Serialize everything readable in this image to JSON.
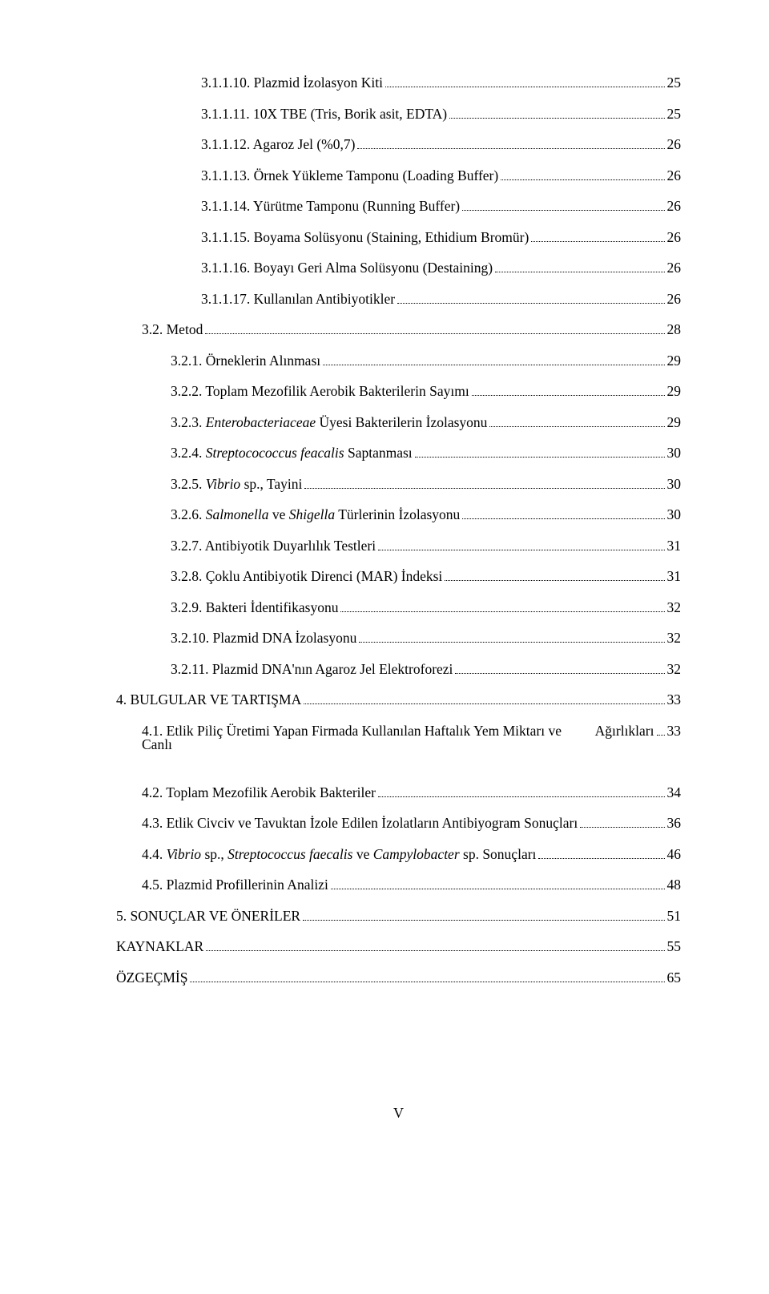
{
  "entries": [
    {
      "indent": 3,
      "label": "3.1.1.10. Plazmid İzolasyon Kiti",
      "page": "25"
    },
    {
      "indent": 3,
      "label": "3.1.1.11. 10X TBE (Tris, Borik asit, EDTA)",
      "page": "25"
    },
    {
      "indent": 3,
      "label": "3.1.1.12. Agaroz Jel (%0,7)",
      "page": "26"
    },
    {
      "indent": 3,
      "label": "3.1.1.13. Örnek Yükleme Tamponu (Loading Buffer)",
      "page": "26"
    },
    {
      "indent": 3,
      "label": "3.1.1.14. Yürütme Tamponu (Running Buffer)",
      "page": "26"
    },
    {
      "indent": 3,
      "label": "3.1.1.15. Boyama Solüsyonu (Staining, Ethidium Bromür)",
      "page": "26"
    },
    {
      "indent": 3,
      "label": "3.1.1.16. Boyayı Geri Alma Solüsyonu (Destaining)",
      "page": "26"
    },
    {
      "indent": 3,
      "label": "3.1.1.17. Kullanılan Antibiyotikler",
      "page": "26"
    },
    {
      "indent": 1,
      "label": "3.2. Metod",
      "page": "28"
    },
    {
      "indent": 2,
      "label": "3.2.1. Örneklerin Alınması",
      "page": "29"
    },
    {
      "indent": 2,
      "label": "3.2.2. Toplam Mezofilik Aerobik Bakterilerin Sayımı",
      "page": "29"
    },
    {
      "indent": 2,
      "html": "3.2.3. <span class=\"italic\">Enterobacteriaceae</span> Üyesi Bakterilerin İzolasyonu",
      "page": "29"
    },
    {
      "indent": 2,
      "html": "3.2.4. <span class=\"italic\">Streptocococcus feacalis</span> Saptanması",
      "page": "30"
    },
    {
      "indent": 2,
      "html": "3.2.5. <span class=\"italic\">Vibrio</span> sp., Tayini",
      "page": "30"
    },
    {
      "indent": 2,
      "html": "3.2.6. <span class=\"italic\">Salmonella</span> ve <span class=\"italic\">Shigella</span> Türlerinin İzolasyonu",
      "page": "30"
    },
    {
      "indent": 2,
      "label": "3.2.7. Antibiyotik Duyarlılık Testleri",
      "page": "31"
    },
    {
      "indent": 2,
      "label": "3.2.8. Çoklu Antibiyotik Direnci (MAR) İndeksi",
      "page": "31"
    },
    {
      "indent": 2,
      "label": "3.2.9. Bakteri İdentifikasyonu",
      "page": "32"
    },
    {
      "indent": 2,
      "label": "3.2.10. Plazmid DNA İzolasyonu",
      "page": "32"
    },
    {
      "indent": 2,
      "label": "3.2.11. Plazmid DNA'nın Agaroz Jel Elektroforezi",
      "page": "32"
    },
    {
      "indent": 0,
      "label": "4. BULGULAR VE TARTIŞMA",
      "page": "33"
    },
    {
      "indent": 1,
      "wrap": true,
      "first": "4.1. Etlik Piliç Üretimi Yapan Firmada Kullanılan Haftalık Yem Miktarı ve Canlı",
      "second": "Ağırlıkları",
      "page": "33"
    },
    {
      "indent": 1,
      "label": "4.2. Toplam Mezofilik Aerobik Bakteriler",
      "page": "34"
    },
    {
      "indent": 1,
      "label": "4.3. Etlik Civciv ve Tavuktan İzole Edilen İzolatların Antibiyogram Sonuçları",
      "page": "36"
    },
    {
      "indent": 1,
      "html": "4.4. <span class=\"italic\">Vibrio</span> sp., <span class=\"italic\">Streptococcus faecalis</span> ve <span class=\"italic\">Campylobacter</span> sp. Sonuçları",
      "page": "46"
    },
    {
      "indent": 1,
      "label": "4.5. Plazmid Profillerinin Analizi",
      "page": "48"
    },
    {
      "indent": 0,
      "label": "5. SONUÇLAR VE ÖNERİLER",
      "page": "51"
    },
    {
      "indent": 0,
      "label": "KAYNAKLAR",
      "page": "55"
    },
    {
      "indent": 0,
      "label": "ÖZGEÇMİŞ",
      "page": "65"
    }
  ],
  "footer": "V"
}
